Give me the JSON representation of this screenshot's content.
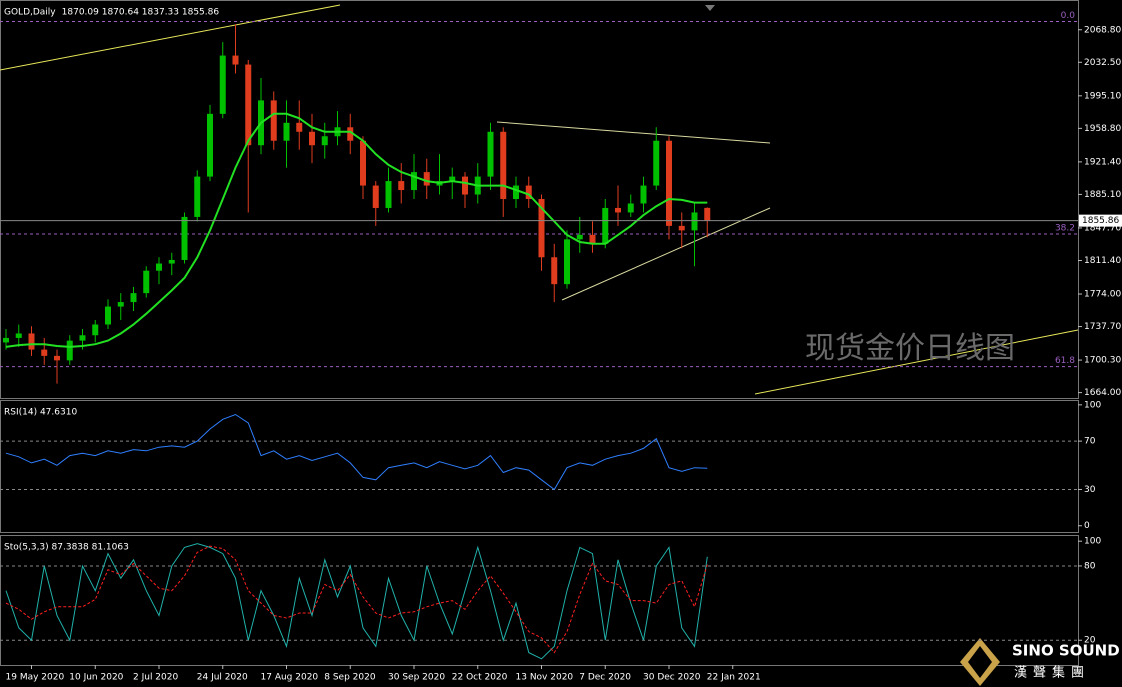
{
  "chart_data": [
    {
      "type": "candlestick",
      "title": "GOLD,Daily",
      "info": "1870.09 1870.64 1837.33 1855.86",
      "categories": [
        null,
        null,
        "19 May 2020",
        null,
        null,
        null,
        null,
        "10 Jun 2020",
        null,
        null,
        null,
        null,
        "2 Jul 2020",
        null,
        null,
        null,
        null,
        "24 Jul 2020",
        null,
        null,
        null,
        null,
        "17 Aug 2020",
        null,
        null,
        null,
        null,
        "8 Sep 2020",
        null,
        null,
        null,
        null,
        "30 Sep 2020",
        null,
        null,
        null,
        null,
        "22 Oct 2020",
        null,
        null,
        null,
        null,
        "13 Nov 2020",
        null,
        null,
        null,
        null,
        "7 Dec 2020",
        null,
        null,
        null,
        null,
        "30 Dec 2020",
        null,
        null,
        null,
        null,
        "22 Jan 2021"
      ],
      "open": [
        1720,
        1725,
        1730,
        1712,
        1705,
        1700,
        1722,
        1728,
        1740,
        1760,
        1765,
        1775,
        1800,
        1808,
        1812,
        1860,
        1905,
        1975,
        2040,
        2030,
        1940,
        1990,
        1945,
        1965,
        1955,
        1940,
        1950,
        1960,
        1945,
        1895,
        1870,
        1900,
        1890,
        1910,
        1895,
        1900,
        1905,
        1885,
        1905,
        1955,
        1880,
        1895,
        1880,
        1815,
        1785,
        1835,
        1840,
        1830,
        1870,
        1865,
        1875,
        1895,
        1945,
        1850,
        1845,
        1870.09,
        null,
        null
      ],
      "high": [
        1735,
        1740,
        1738,
        1725,
        1712,
        1728,
        1735,
        1745,
        1768,
        1775,
        1782,
        1805,
        1815,
        1820,
        1865,
        1912,
        1985,
        2055,
        2075,
        2035,
        2015,
        2000,
        1990,
        1990,
        1975,
        1965,
        1978,
        1975,
        1950,
        1900,
        1915,
        1920,
        1930,
        1925,
        1930,
        1915,
        1910,
        1920,
        1965,
        1960,
        1905,
        1905,
        1885,
        1830,
        1845,
        1860,
        1855,
        1880,
        1895,
        1885,
        1905,
        1960,
        1950,
        1865,
        1875,
        1870.64,
        null,
        null
      ],
      "low": [
        1712,
        1715,
        1705,
        1695,
        1674,
        1695,
        1712,
        1720,
        1735,
        1745,
        1755,
        1770,
        1785,
        1795,
        1808,
        1855,
        1900,
        1970,
        2020,
        1865,
        1930,
        1935,
        1915,
        1935,
        1920,
        1925,
        1940,
        1930,
        1880,
        1850,
        1865,
        1875,
        1880,
        1880,
        1885,
        1880,
        1870,
        1875,
        1890,
        1860,
        1870,
        1870,
        1800,
        1765,
        1780,
        1820,
        1820,
        1825,
        1850,
        1860,
        1865,
        1890,
        1835,
        1825,
        1805,
        1837.33,
        null,
        null
      ],
      "close": [
        1725,
        1730,
        1712,
        1705,
        1700,
        1722,
        1728,
        1740,
        1760,
        1765,
        1775,
        1800,
        1808,
        1812,
        1860,
        1905,
        1975,
        2040,
        2030,
        1940,
        1990,
        1945,
        1965,
        1955,
        1940,
        1950,
        1960,
        1945,
        1895,
        1870,
        1900,
        1890,
        1910,
        1895,
        1900,
        1905,
        1885,
        1905,
        1955,
        1880,
        1895,
        1880,
        1815,
        1785,
        1835,
        1840,
        1830,
        1870,
        1865,
        1875,
        1895,
        1945,
        1850,
        1845,
        1865,
        1855.86,
        null,
        null
      ],
      "up_color": "#00c000",
      "down_color": "#e03c1e",
      "series": [
        {
          "color": "#22e022",
          "values": [
            1715,
            1717,
            1718,
            1718,
            1716,
            1715,
            1716,
            1718,
            1722,
            1730,
            1740,
            1752,
            1765,
            1778,
            1792,
            1815,
            1845,
            1880,
            1915,
            1945,
            1965,
            1975,
            1975,
            1970,
            1960,
            1955,
            1955,
            1955,
            1945,
            1930,
            1918,
            1910,
            1905,
            1900,
            1898,
            1900,
            1898,
            1895,
            1895,
            1895,
            1890,
            1885,
            1870,
            1855,
            1840,
            1832,
            1830,
            1830,
            1840,
            1850,
            1862,
            1872,
            1880,
            1879,
            1876,
            1876,
            null,
            null
          ]
        }
      ],
      "levels": [
        {
          "value": 2078,
          "label": "0.0"
        },
        {
          "value": 1841,
          "label": "38.2"
        },
        {
          "value": 1693,
          "label": "61.8"
        }
      ],
      "level_color": "#9a5fc0",
      "ylim": [
        1658,
        2102
      ],
      "yticks": [
        {
          "value": 2068.8,
          "label": "2068.80"
        },
        {
          "value": 2032.5,
          "label": "2032.50"
        },
        {
          "value": 1995.1,
          "label": "1995.10"
        },
        {
          "value": 1958.8,
          "label": "1958.80"
        },
        {
          "value": 1921.4,
          "label": "1921.40"
        },
        {
          "value": 1885.1,
          "label": "1885.10"
        },
        {
          "value": 1847.7,
          "label": "1847.70"
        },
        {
          "value": 1811.4,
          "label": "1811.40"
        },
        {
          "value": 1774,
          "label": "1774.00"
        },
        {
          "value": 1737.7,
          "label": "1737.70"
        },
        {
          "value": 1700.3,
          "label": "1700.30"
        },
        {
          "value": 1664,
          "label": "1664.00"
        }
      ]
    },
    {
      "type": "line",
      "title": "RSI(14) 47.6310",
      "series": [
        {
          "color": "#2f7fff",
          "values": [
            60,
            57,
            52,
            55,
            50,
            58,
            60,
            58,
            62,
            60,
            63,
            62,
            65,
            66,
            65,
            70,
            80,
            88,
            92,
            85,
            58,
            62,
            55,
            58,
            54,
            57,
            60,
            52,
            40,
            38,
            48,
            50,
            52,
            48,
            53,
            50,
            47,
            50,
            58,
            44,
            48,
            46,
            38,
            30,
            48,
            52,
            50,
            55,
            58,
            60,
            64,
            72,
            48,
            45,
            48,
            47.631,
            null,
            null
          ]
        }
      ],
      "levels": [
        30,
        70
      ],
      "level_color": "#888",
      "ylim": [
        -6,
        104
      ],
      "yticks": [
        0,
        30,
        70,
        100
      ]
    },
    {
      "type": "line",
      "title": "Sto(5,3,3) 87.3838 81.1063",
      "series": [
        {
          "color": "#20b2aa",
          "values": [
            60,
            30,
            20,
            80,
            40,
            20,
            80,
            60,
            90,
            70,
            85,
            60,
            40,
            80,
            95,
            98,
            95,
            90,
            70,
            20,
            60,
            40,
            15,
            70,
            40,
            85,
            55,
            80,
            30,
            15,
            70,
            40,
            20,
            80,
            50,
            25,
            60,
            95,
            60,
            20,
            50,
            10,
            5,
            15,
            60,
            95,
            90,
            20,
            85,
            50,
            20,
            80,
            95,
            30,
            15,
            87.3838,
            null,
            null
          ]
        },
        {
          "color": "#ff2020",
          "dash": true,
          "values": [
            50,
            45,
            37,
            43,
            47,
            47,
            47,
            53,
            77,
            73,
            82,
            72,
            62,
            60,
            72,
            91,
            96,
            94,
            85,
            60,
            50,
            40,
            38,
            42,
            42,
            65,
            60,
            73,
            55,
            42,
            38,
            42,
            43,
            47,
            50,
            52,
            45,
            60,
            72,
            58,
            43,
            27,
            22,
            10,
            27,
            57,
            82,
            68,
            65,
            52,
            52,
            50,
            65,
            68,
            47,
            81.1063,
            null,
            null
          ]
        }
      ],
      "levels": [
        20,
        80
      ],
      "level_color": "#888",
      "ylim": [
        0,
        105
      ],
      "yticks": [
        20,
        80,
        100
      ]
    }
  ],
  "watermark": "现货金价日线图",
  "logo": {
    "name": "SINO SOUND",
    "sub": "漢聲集團"
  }
}
